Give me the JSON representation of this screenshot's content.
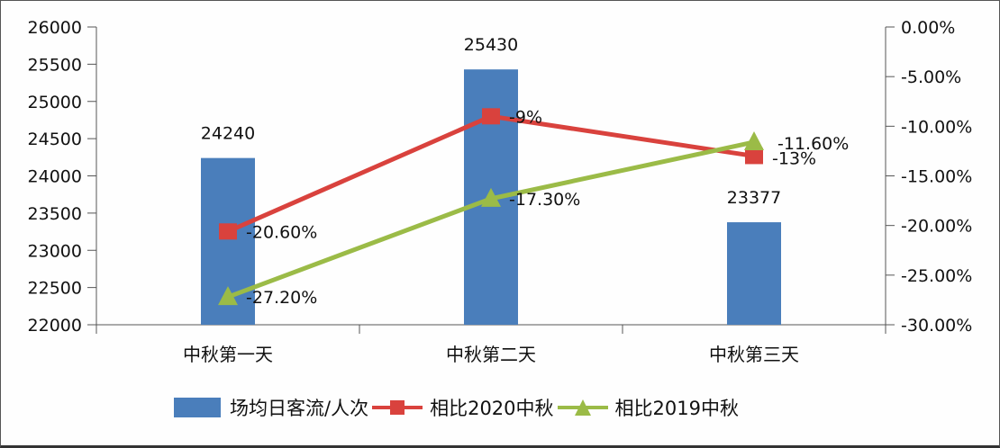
{
  "chart_data": {
    "type": "bar+line",
    "title": "",
    "categories": [
      "中秋第一天",
      "中秋第二天",
      "中秋第三天"
    ],
    "series": [
      {
        "name": "场均日客流/人次",
        "type": "bar",
        "axis": "left",
        "color": "#4a7ebb",
        "values": [
          24240,
          25430,
          23377
        ],
        "labels": [
          "24240",
          "25430",
          "23377"
        ]
      },
      {
        "name": "相比2020中秋",
        "type": "line",
        "axis": "right",
        "marker": "square",
        "color": "#d9423d",
        "values": [
          -20.6,
          -9,
          -13
        ],
        "labels": [
          "-20.60%",
          "-9%",
          "-13%"
        ]
      },
      {
        "name": "相比2019中秋",
        "type": "line",
        "axis": "right",
        "marker": "triangle",
        "color": "#9bbb47",
        "values": [
          -27.2,
          -17.3,
          -11.6
        ],
        "labels": [
          "-27.20%",
          "-17.30%",
          "-11.60%"
        ]
      }
    ],
    "y_left": {
      "ylim": [
        22000,
        26000
      ],
      "ticks": [
        "26000",
        "25500",
        "25000",
        "24500",
        "24000",
        "23500",
        "23000",
        "22500",
        "22000"
      ]
    },
    "y_right": {
      "ylim": [
        -30,
        0
      ],
      "ticks": [
        "0.00%",
        "-5.00%",
        "-10.00%",
        "-15.00%",
        "-20.00%",
        "-25.00%",
        "-30.00%"
      ]
    },
    "xlabel": "",
    "ylabel": "",
    "grid": false,
    "legend_position": "bottom"
  },
  "legend": {
    "items": [
      {
        "label": "场均日客流/人次",
        "color": "#4a7ebb"
      },
      {
        "label": "相比2020中秋",
        "color": "#d9423d"
      },
      {
        "label": "相比2019中秋",
        "color": "#9bbb47"
      }
    ]
  }
}
